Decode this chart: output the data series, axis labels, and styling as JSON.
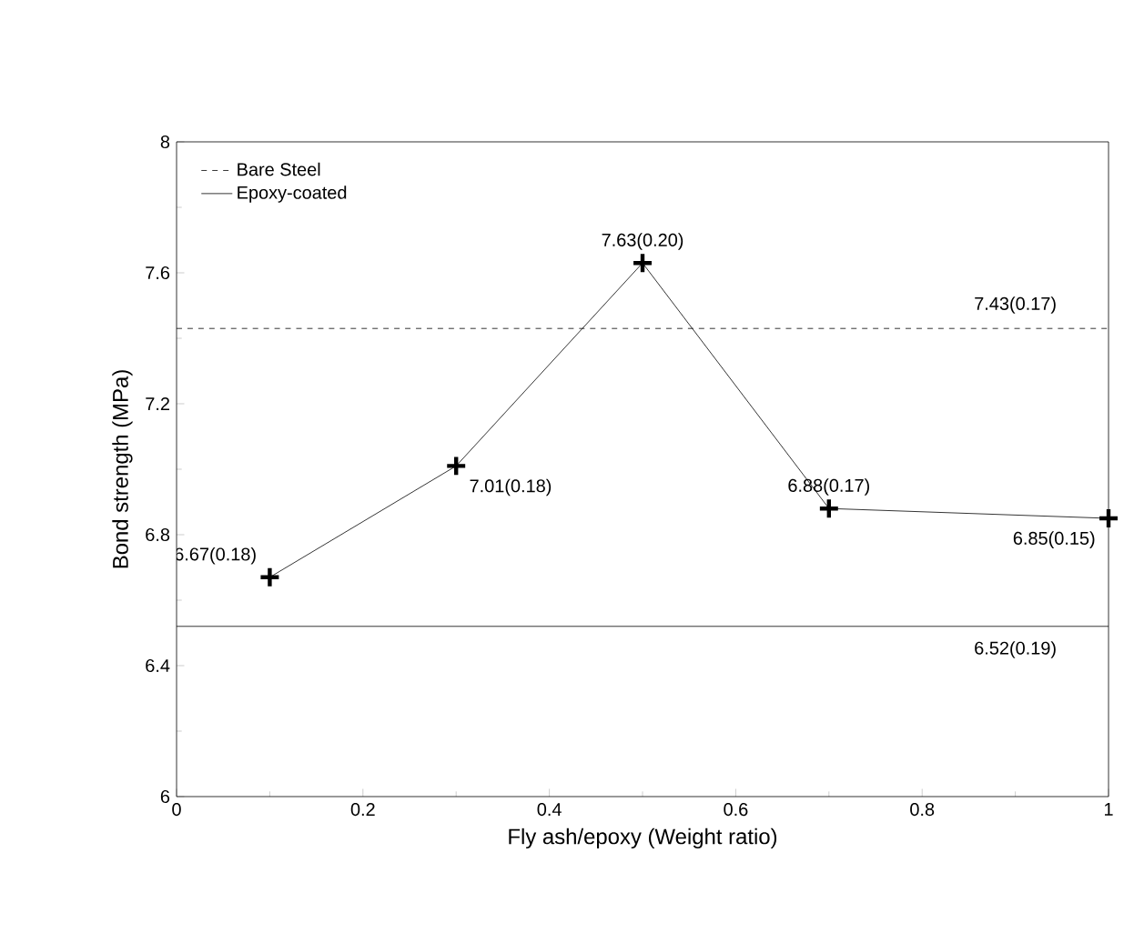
{
  "chart_data": {
    "type": "line",
    "xlabel": "Fly ash/epoxy (Weight ratio)",
    "ylabel": "Bond strength (MPa)",
    "x": [
      0.1,
      0.3,
      0.5,
      0.7,
      1.0
    ],
    "series": [
      {
        "color": "#000000",
        "values": [
          6.67,
          7.01,
          7.63,
          6.88,
          6.85
        ],
        "value_labels": [
          "6.67(0.18)",
          "7.01(0.18)",
          "7.63(0.20)",
          "6.88(0.17)",
          "6.85(0.15)"
        ]
      }
    ],
    "xlim": [
      0,
      1
    ],
    "ylim": [
      6,
      8
    ],
    "xticks": [
      0,
      0.2,
      0.4,
      0.6,
      0.8,
      1
    ],
    "yticks": [
      6,
      6.4,
      6.8,
      7.2,
      7.6,
      8
    ],
    "marker": "cross",
    "line_style": "solid",
    "legend": "top left",
    "ref_lines": [
      {
        "axis": "y",
        "value": 7.43,
        "label": "Bare Steel",
        "line_style": "dashed"
      },
      {
        "axis": "y",
        "value": 6.52,
        "label": "Epoxy-coated",
        "line_style": "solid"
      }
    ],
    "annotations": [
      {
        "text": "7.43(0.17)",
        "x": 0.9,
        "y": 7.43
      },
      {
        "text": "6.52(0.19)",
        "x": 0.9,
        "y": 6.52
      }
    ]
  }
}
